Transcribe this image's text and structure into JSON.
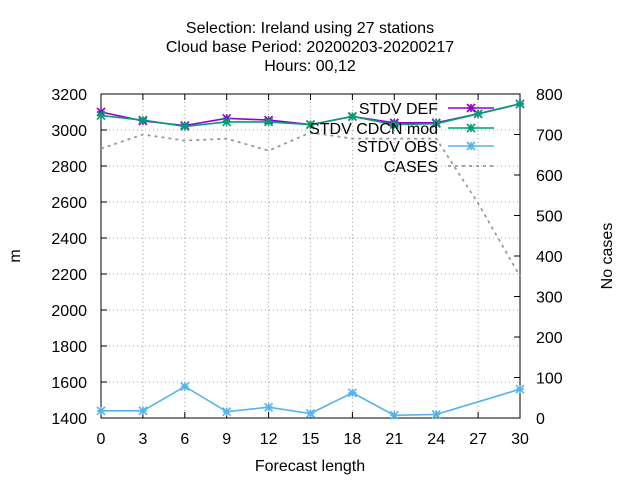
{
  "chart_data": {
    "type": "line",
    "title_lines": [
      "Selection: Ireland using    27 stations",
      "Cloud base   Period: 20200203-20200217",
      "Hours:  00,12"
    ],
    "xlabel": "Forecast length",
    "ylabel": "m",
    "y2label": "No cases",
    "x": [
      0,
      3,
      6,
      9,
      12,
      15,
      18,
      21,
      24,
      27,
      30
    ],
    "xticks": [
      "0",
      "3",
      "6",
      "9",
      "12",
      "15",
      "18",
      "21",
      "24",
      "27",
      "30"
    ],
    "xlim": [
      0,
      30
    ],
    "ylim": [
      1400,
      3200
    ],
    "yticks": [
      "1400",
      "1600",
      "1800",
      "2000",
      "2200",
      "2400",
      "2600",
      "2800",
      "3000",
      "3200"
    ],
    "y2lim": [
      0,
      800
    ],
    "y2ticks": [
      "0",
      "100",
      "200",
      "300",
      "400",
      "500",
      "600",
      "700",
      "800"
    ],
    "grid": true,
    "legend_position": "top-right",
    "colors": {
      "STDV DEF": "#9400d3",
      "STDV CDCN mod": "#009e73",
      "STDV OBS": "#56b4e9",
      "CASES": "#999999"
    },
    "series": [
      {
        "name": "STDV DEF",
        "axis": "y",
        "values": [
          3100,
          3050,
          3025,
          3065,
          3055,
          3030,
          3075,
          3040,
          3040,
          3090,
          3145
        ]
      },
      {
        "name": "STDV CDCN mod",
        "axis": "y",
        "values": [
          3080,
          3055,
          3020,
          3045,
          3045,
          3030,
          3075,
          3030,
          3035,
          3090,
          3145
        ]
      },
      {
        "name": "STDV OBS",
        "axis": "y",
        "values": [
          1440,
          1440,
          1575,
          1435,
          1460,
          1425,
          1540,
          1415,
          1420,
          null,
          1560
        ]
      },
      {
        "name": "CASES",
        "axis": "y2",
        "values": [
          665,
          700,
          685,
          690,
          660,
          705,
          690,
          690,
          690,
          530,
          350
        ]
      }
    ]
  }
}
